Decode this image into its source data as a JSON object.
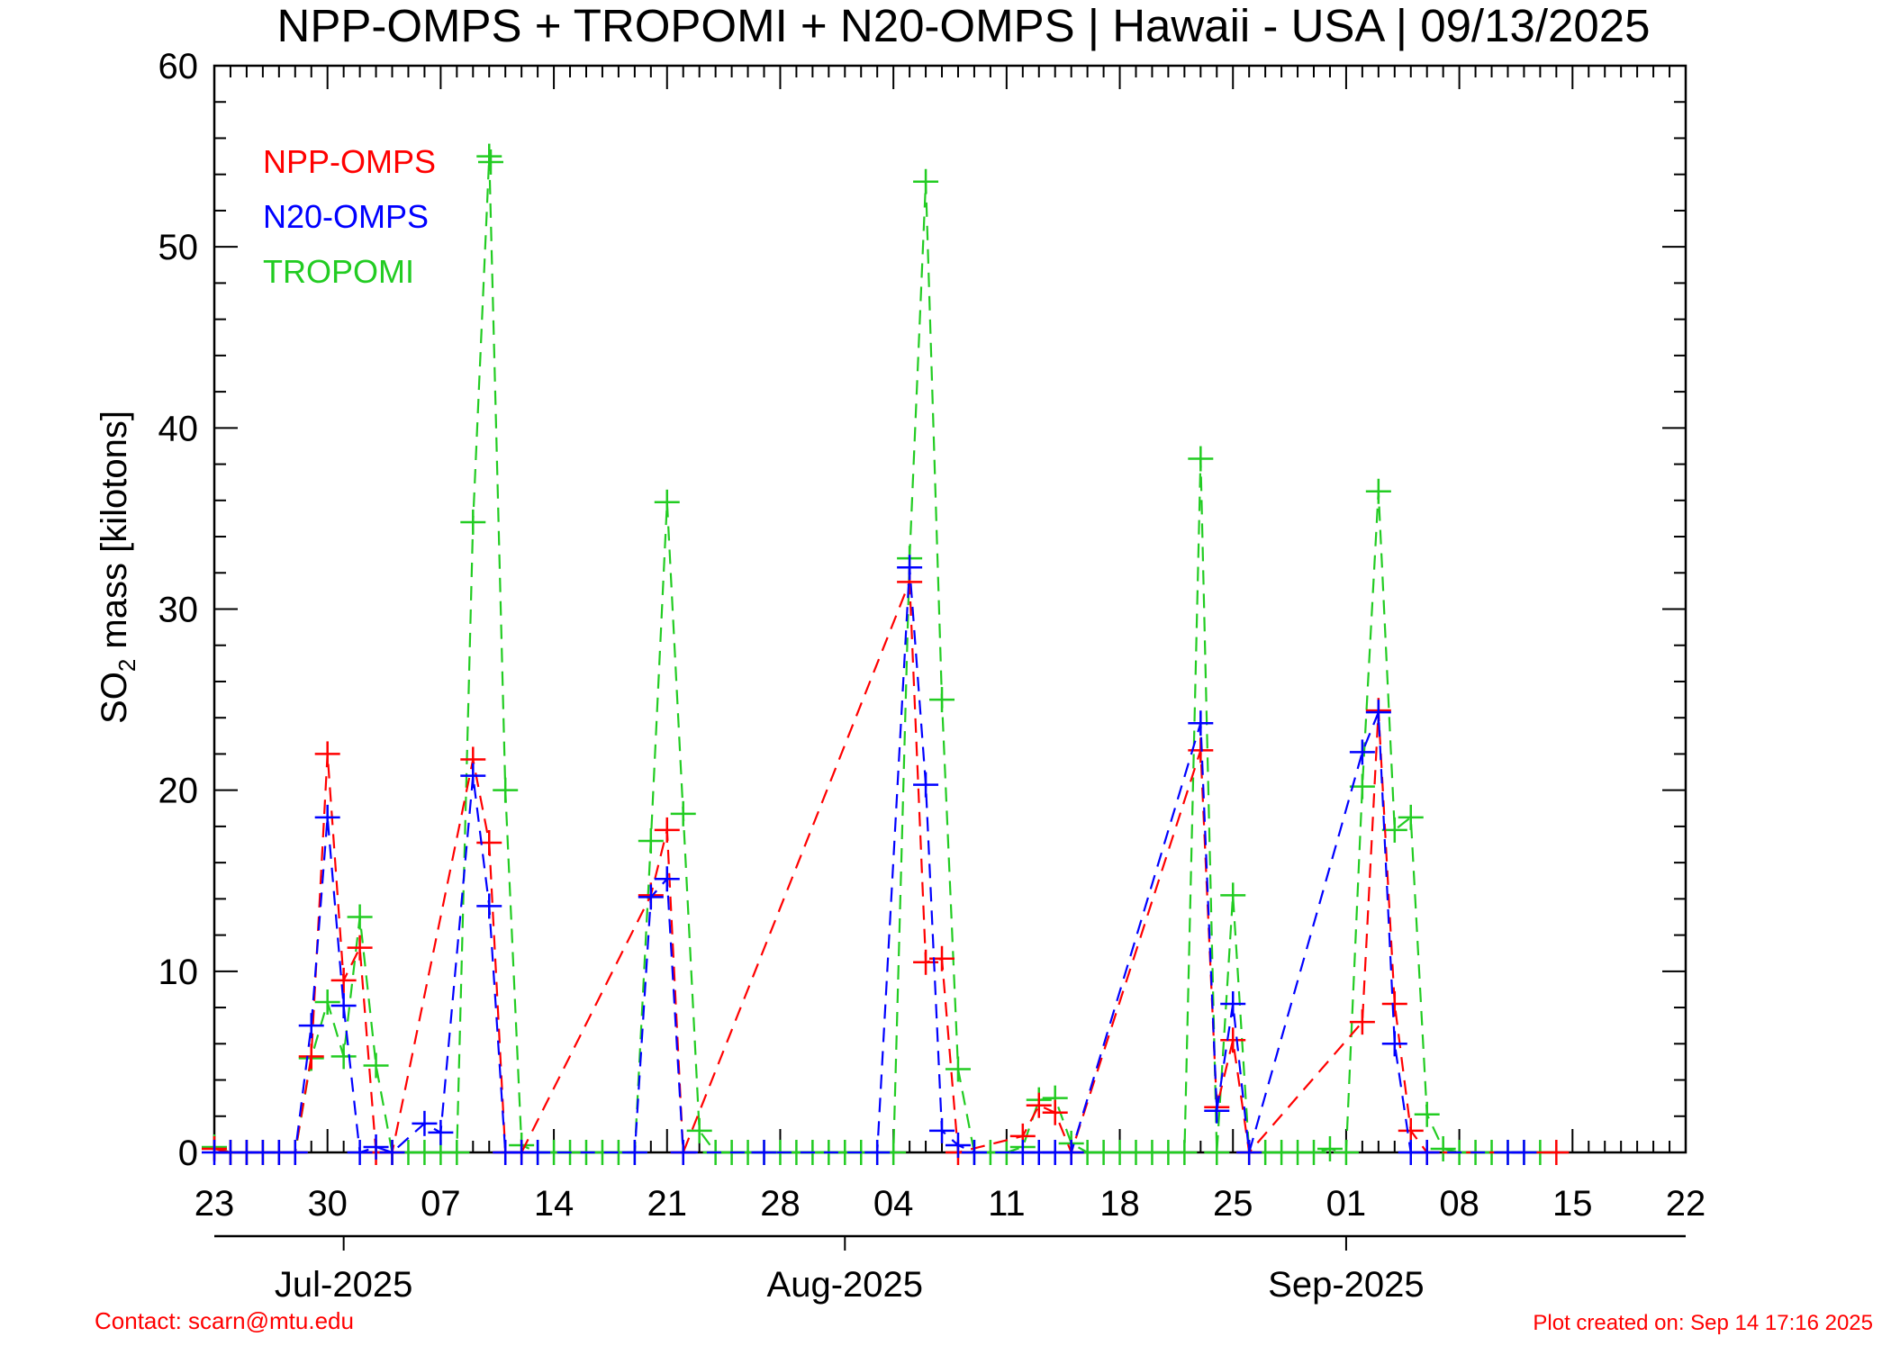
{
  "title": "NPP-OMPS + TROPOMI + N20-OMPS | Hawaii - USA | 09/13/2025",
  "footer": {
    "contact": "Contact: scarn@mtu.edu",
    "created": "Plot created on: Sep 14 17:16 2025"
  },
  "colors": {
    "npp": "#ff0000",
    "n20": "#0000ff",
    "tropomi": "#22cc22",
    "axis": "#000000",
    "footer": "#ff0000"
  },
  "chart_data": {
    "type": "line",
    "marker": "plus",
    "line_style": "dashed",
    "title": "NPP-OMPS + TROPOMI + N20-OMPS | Hawaii - USA | 09/13/2025",
    "ylabel": "SO2 mass [kilotons]",
    "ylabel_main": "SO",
    "ylabel_sub": "2",
    "ylabel_rest": " mass [kilotons]",
    "ylim": [
      0,
      60
    ],
    "y_ticks": [
      "0",
      "10",
      "20",
      "30",
      "40",
      "50",
      "60"
    ],
    "xlim": [
      "2025-06-23",
      "2025-09-22"
    ],
    "x_ticks": [
      {
        "date": "2025-06-23",
        "label": "23"
      },
      {
        "date": "2025-06-30",
        "label": "30"
      },
      {
        "date": "2025-07-07",
        "label": "07"
      },
      {
        "date": "2025-07-14",
        "label": "14"
      },
      {
        "date": "2025-07-21",
        "label": "21"
      },
      {
        "date": "2025-07-28",
        "label": "28"
      },
      {
        "date": "2025-08-04",
        "label": "04"
      },
      {
        "date": "2025-08-11",
        "label": "11"
      },
      {
        "date": "2025-08-18",
        "label": "18"
      },
      {
        "date": "2025-08-25",
        "label": "25"
      },
      {
        "date": "2025-09-01",
        "label": "01"
      },
      {
        "date": "2025-09-08",
        "label": "08"
      },
      {
        "date": "2025-09-15",
        "label": "15"
      },
      {
        "date": "2025-09-22",
        "label": "22"
      }
    ],
    "month_ticks": [
      "2025-07-01",
      "2025-08-01",
      "2025-09-01"
    ],
    "month_labels": [
      {
        "date": "2025-07-01",
        "label": "Jul-2025"
      },
      {
        "date": "2025-08-01",
        "label": "Aug-2025"
      },
      {
        "date": "2025-09-01",
        "label": "Sep-2025"
      }
    ],
    "legend_position": "top-left",
    "grid": false,
    "series": [
      {
        "name": "NPP-OMPS",
        "points": [
          [
            "2025-06-23",
            0.2
          ],
          [
            "2025-06-24",
            0
          ],
          [
            "2025-06-25",
            0
          ],
          [
            "2025-06-26",
            0
          ],
          [
            "2025-06-27",
            0
          ],
          [
            "2025-06-28",
            0
          ],
          [
            "2025-06-29",
            5.3
          ],
          [
            "2025-06-30",
            22.0
          ],
          [
            "2025-07-01",
            9.5
          ],
          [
            "2025-07-02",
            11.3
          ],
          [
            "2025-07-03",
            0
          ],
          [
            "2025-07-04",
            0
          ],
          [
            "2025-07-09",
            21.7
          ],
          [
            "2025-07-10",
            17.1
          ],
          [
            "2025-07-11",
            0
          ],
          [
            "2025-07-12",
            0
          ],
          [
            "2025-07-20",
            14.2
          ],
          [
            "2025-07-21",
            17.8
          ],
          [
            "2025-07-22",
            0
          ],
          [
            "2025-08-05",
            31.5
          ],
          [
            "2025-08-06",
            10.5
          ],
          [
            "2025-08-07",
            10.7
          ],
          [
            "2025-08-08",
            0
          ],
          [
            "2025-08-12",
            0.9
          ],
          [
            "2025-08-13",
            2.6
          ],
          [
            "2025-08-14",
            2.2
          ],
          [
            "2025-08-15",
            0
          ],
          [
            "2025-08-23",
            22.2
          ],
          [
            "2025-08-24",
            2.5
          ],
          [
            "2025-08-25",
            6.2
          ],
          [
            "2025-08-26",
            0
          ],
          [
            "2025-09-02",
            7.2
          ],
          [
            "2025-09-03",
            24.4
          ],
          [
            "2025-09-04",
            8.2
          ],
          [
            "2025-09-05",
            1.2
          ],
          [
            "2025-09-06",
            0
          ],
          [
            "2025-09-14",
            0
          ]
        ]
      },
      {
        "name": "N20-OMPS",
        "points": [
          [
            "2025-06-23",
            0
          ],
          [
            "2025-06-24",
            0
          ],
          [
            "2025-06-25",
            0
          ],
          [
            "2025-06-26",
            0
          ],
          [
            "2025-06-27",
            0
          ],
          [
            "2025-06-28",
            0
          ],
          [
            "2025-06-29",
            7.0
          ],
          [
            "2025-06-30",
            18.5
          ],
          [
            "2025-07-01",
            8.1
          ],
          [
            "2025-07-02",
            0
          ],
          [
            "2025-07-03",
            0.3
          ],
          [
            "2025-07-04",
            0
          ],
          [
            "2025-07-06",
            1.6
          ],
          [
            "2025-07-07",
            1.1
          ],
          [
            "2025-07-09",
            20.8
          ],
          [
            "2025-07-10",
            13.6
          ],
          [
            "2025-07-11",
            0
          ],
          [
            "2025-07-12",
            0
          ],
          [
            "2025-07-13",
            0
          ],
          [
            "2025-07-19",
            0
          ],
          [
            "2025-07-20",
            14.1
          ],
          [
            "2025-07-21",
            15.1
          ],
          [
            "2025-07-22",
            0
          ],
          [
            "2025-07-27",
            0
          ],
          [
            "2025-08-03",
            0
          ],
          [
            "2025-08-05",
            32.3
          ],
          [
            "2025-08-06",
            20.3
          ],
          [
            "2025-08-07",
            1.2
          ],
          [
            "2025-08-08",
            0.4
          ],
          [
            "2025-08-09",
            0
          ],
          [
            "2025-08-12",
            0
          ],
          [
            "2025-08-13",
            0
          ],
          [
            "2025-08-14",
            0
          ],
          [
            "2025-08-15",
            0
          ],
          [
            "2025-08-23",
            23.7
          ],
          [
            "2025-08-24",
            2.3
          ],
          [
            "2025-08-25",
            8.2
          ],
          [
            "2025-08-26",
            0
          ],
          [
            "2025-09-02",
            22.1
          ],
          [
            "2025-09-03",
            24.3
          ],
          [
            "2025-09-04",
            6.0
          ],
          [
            "2025-09-05",
            0
          ],
          [
            "2025-09-06",
            0
          ],
          [
            "2025-09-11",
            0
          ],
          [
            "2025-09-12",
            0
          ]
        ]
      },
      {
        "name": "TROPOMI",
        "points": [
          [
            "2025-06-23",
            0.3
          ],
          [
            "2025-06-24",
            0
          ],
          [
            "2025-06-25",
            0
          ],
          [
            "2025-06-26",
            0
          ],
          [
            "2025-06-27",
            0
          ],
          [
            "2025-06-28",
            0
          ],
          [
            "2025-06-29",
            5.2
          ],
          [
            "2025-06-30",
            8.3
          ],
          [
            "2025-07-01",
            5.3
          ],
          [
            "2025-07-02",
            13.0
          ],
          [
            "2025-07-03",
            4.8
          ],
          [
            "2025-07-04",
            0
          ],
          [
            "2025-07-05",
            0
          ],
          [
            "2025-07-06",
            0
          ],
          [
            "2025-07-07",
            0
          ],
          [
            "2025-07-08",
            0
          ],
          [
            "2025-07-09",
            34.8
          ],
          [
            "2025-07-10",
            55.0
          ],
          [
            "2025-07-11",
            20.0
          ],
          [
            "2025-07-12",
            0.4
          ],
          [
            "2025-07-13",
            0
          ],
          [
            "2025-07-14",
            0
          ],
          [
            "2025-07-15",
            0
          ],
          [
            "2025-07-16",
            0
          ],
          [
            "2025-07-17",
            0
          ],
          [
            "2025-07-18",
            0
          ],
          [
            "2025-07-19",
            0
          ],
          [
            "2025-07-20",
            17.2
          ],
          [
            "2025-07-21",
            35.9
          ],
          [
            "2025-07-22",
            18.7
          ],
          [
            "2025-07-23",
            1.2
          ],
          [
            "2025-07-24",
            0
          ],
          [
            "2025-07-25",
            0
          ],
          [
            "2025-07-26",
            0
          ],
          [
            "2025-07-27",
            0
          ],
          [
            "2025-07-28",
            0
          ],
          [
            "2025-07-29",
            0
          ],
          [
            "2025-07-30",
            0
          ],
          [
            "2025-07-31",
            0
          ],
          [
            "2025-08-01",
            0
          ],
          [
            "2025-08-02",
            0
          ],
          [
            "2025-08-03",
            0
          ],
          [
            "2025-08-04",
            0
          ],
          [
            "2025-08-05",
            32.8
          ],
          [
            "2025-08-06",
            53.6
          ],
          [
            "2025-08-07",
            25.0
          ],
          [
            "2025-08-08",
            4.6
          ],
          [
            "2025-08-09",
            0
          ],
          [
            "2025-08-10",
            0
          ],
          [
            "2025-08-11",
            0
          ],
          [
            "2025-08-12",
            0.3
          ],
          [
            "2025-08-13",
            2.9
          ],
          [
            "2025-08-14",
            3.0
          ],
          [
            "2025-08-15",
            0.5
          ],
          [
            "2025-08-16",
            0
          ],
          [
            "2025-08-17",
            0
          ],
          [
            "2025-08-18",
            0
          ],
          [
            "2025-08-19",
            0
          ],
          [
            "2025-08-20",
            0
          ],
          [
            "2025-08-21",
            0
          ],
          [
            "2025-08-22",
            0
          ],
          [
            "2025-08-23",
            38.3
          ],
          [
            "2025-08-24",
            0
          ],
          [
            "2025-08-25",
            14.2
          ],
          [
            "2025-08-26",
            0
          ],
          [
            "2025-08-27",
            0
          ],
          [
            "2025-08-28",
            0
          ],
          [
            "2025-08-29",
            0
          ],
          [
            "2025-08-30",
            0
          ],
          [
            "2025-08-31",
            0.2
          ],
          [
            "2025-09-01",
            0
          ],
          [
            "2025-09-02",
            20.2
          ],
          [
            "2025-09-03",
            36.5
          ],
          [
            "2025-09-04",
            17.8
          ],
          [
            "2025-09-05",
            18.5
          ],
          [
            "2025-09-06",
            2.1
          ],
          [
            "2025-09-07",
            0.2
          ],
          [
            "2025-09-08",
            0
          ],
          [
            "2025-09-09",
            0
          ],
          [
            "2025-09-10",
            0
          ],
          [
            "2025-09-11",
            0
          ],
          [
            "2025-09-12",
            0
          ],
          [
            "2025-09-13",
            0
          ]
        ]
      }
    ]
  }
}
